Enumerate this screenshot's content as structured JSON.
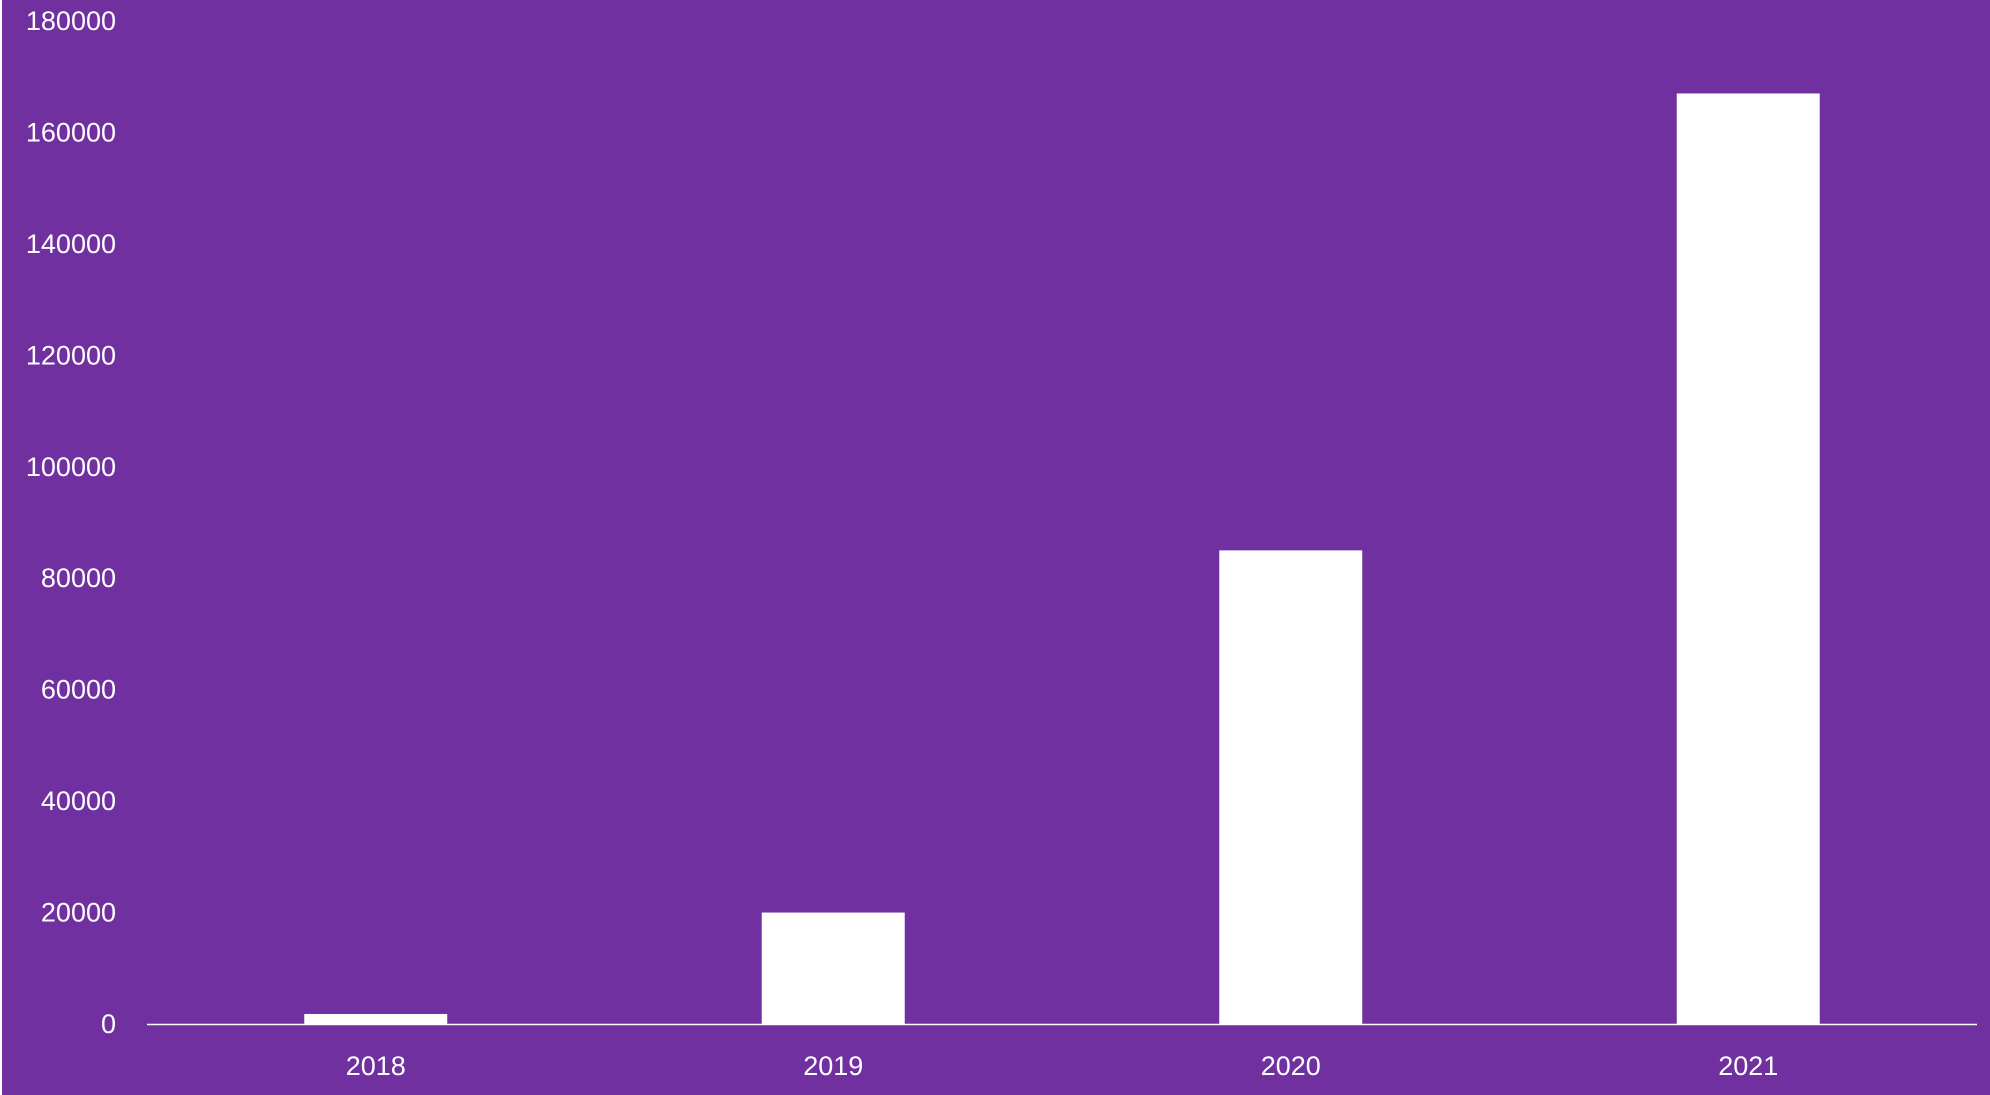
{
  "colors": {
    "background": "#7030a0",
    "bar": "#ffffff",
    "axis": "#ffffff",
    "text": "#ffffff"
  },
  "chart_data": {
    "type": "bar",
    "categories": [
      "2018",
      "2019",
      "2020",
      "2021"
    ],
    "values": [
      1800,
      20000,
      85000,
      167000
    ],
    "ylim": [
      0,
      180000
    ],
    "yticks": [
      0,
      20000,
      40000,
      60000,
      80000,
      100000,
      120000,
      140000,
      160000,
      180000
    ],
    "ytick_labels": [
      "0",
      "20000",
      "40000",
      "60000",
      "80000",
      "100000",
      "120000",
      "140000",
      "160000",
      "180000"
    ],
    "grid": false,
    "legend": "none"
  }
}
